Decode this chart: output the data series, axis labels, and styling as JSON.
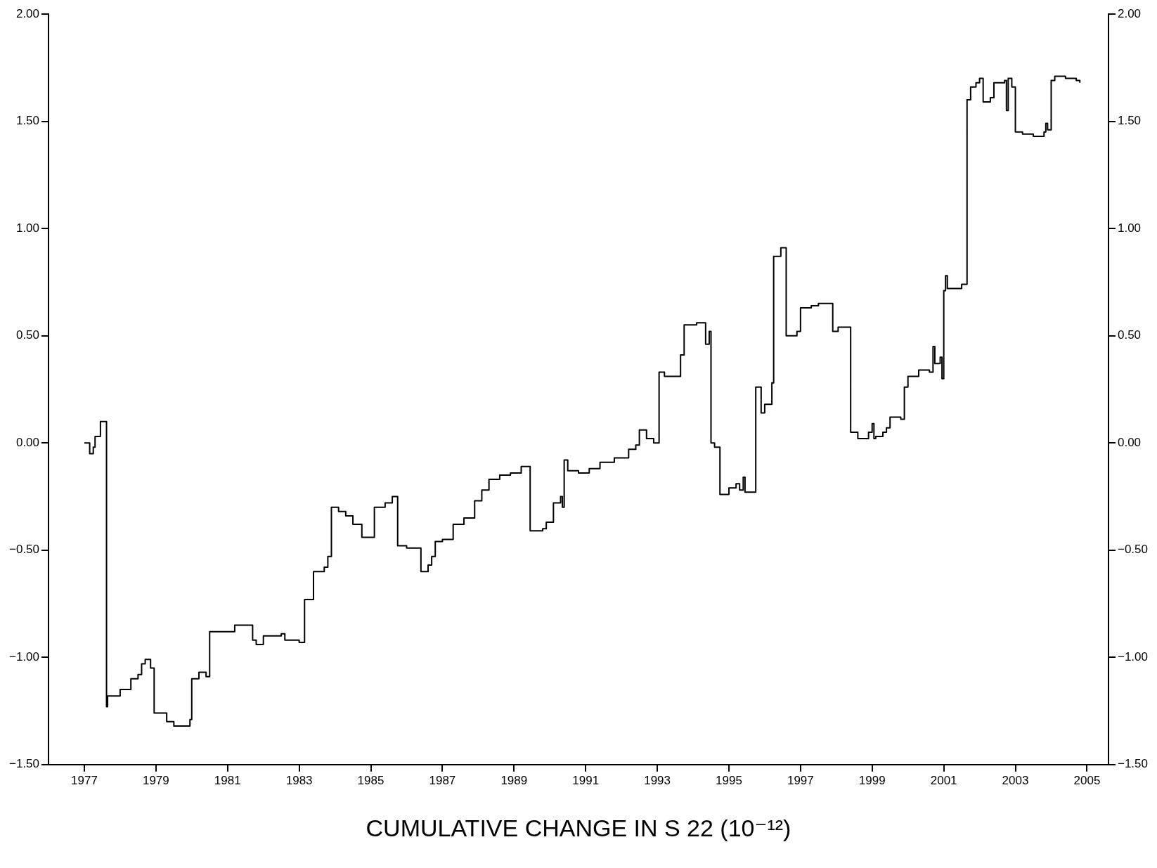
{
  "chart_data": {
    "type": "step",
    "xlabel": "CUMULATIVE CHANGE IN S 22 (10⁻¹²)",
    "xlim": [
      1976,
      2005.6
    ],
    "xticks": [
      1977,
      1979,
      1981,
      1983,
      1985,
      1987,
      1989,
      1991,
      1993,
      1995,
      1997,
      1999,
      2001,
      2003,
      2005
    ],
    "ylim": [
      -1.5,
      2
    ],
    "yticks": [
      {
        "value": -1.5,
        "label": "−1.50"
      },
      {
        "value": -1,
        "label": "−1.00"
      },
      {
        "value": -0.5,
        "label": "−0.50"
      },
      {
        "value": 0,
        "label": "0.00"
      },
      {
        "value": 0.5,
        "label": "0.50"
      },
      {
        "value": 1,
        "label": "1.00"
      },
      {
        "value": 1.5,
        "label": "1.50"
      },
      {
        "value": 2,
        "label": "2.00"
      }
    ],
    "y2lim": [
      -1.5,
      2
    ],
    "y2ticks": [
      {
        "value": -1.5,
        "label": "−1.50"
      },
      {
        "value": -1,
        "label": "−1.00"
      },
      {
        "value": -0.5,
        "label": "−0.50"
      },
      {
        "value": 0,
        "label": "0.00"
      },
      {
        "value": 0.5,
        "label": "0.50"
      },
      {
        "value": 1,
        "label": "1.00"
      },
      {
        "value": 1.5,
        "label": "1.50"
      },
      {
        "value": 2,
        "label": "2.00"
      }
    ],
    "grid": false,
    "legend": false,
    "marker": "none",
    "line_style": "solid",
    "series": [
      {
        "color": "#000000",
        "x": [
          1977.0,
          1977.15,
          1977.25,
          1977.3,
          1977.45,
          1977.62,
          1977.65,
          1978.0,
          1978.3,
          1978.5,
          1978.6,
          1978.7,
          1978.85,
          1978.95,
          1979.3,
          1979.5,
          1979.95,
          1980.0,
          1980.2,
          1980.4,
          1980.5,
          1981.2,
          1981.7,
          1981.8,
          1982.0,
          1982.5,
          1982.6,
          1983.0,
          1983.15,
          1983.4,
          1983.7,
          1983.8,
          1983.9,
          1984.1,
          1984.3,
          1984.5,
          1984.75,
          1985.1,
          1985.4,
          1985.6,
          1985.75,
          1986.0,
          1986.4,
          1986.6,
          1986.7,
          1986.8,
          1987.0,
          1987.3,
          1987.6,
          1987.9,
          1988.1,
          1988.3,
          1988.6,
          1988.9,
          1989.2,
          1989.45,
          1989.8,
          1989.9,
          1990.1,
          1990.3,
          1990.35,
          1990.4,
          1990.5,
          1990.8,
          1991.1,
          1991.4,
          1991.8,
          1992.2,
          1992.4,
          1992.5,
          1992.7,
          1992.9,
          1993.05,
          1993.2,
          1993.65,
          1993.75,
          1994.1,
          1994.35,
          1994.45,
          1994.5,
          1994.6,
          1994.75,
          1995.0,
          1995.2,
          1995.3,
          1995.4,
          1995.45,
          1995.75,
          1995.9,
          1996.0,
          1996.2,
          1996.25,
          1996.45,
          1996.6,
          1996.9,
          1997.0,
          1997.3,
          1997.5,
          1997.9,
          1998.05,
          1998.4,
          1998.6,
          1998.9,
          1999.0,
          1999.05,
          1999.1,
          1999.3,
          1999.4,
          1999.5,
          1999.8,
          1999.9,
          2000.0,
          2000.3,
          2000.6,
          2000.7,
          2000.75,
          2000.9,
          2000.95,
          2001.0,
          2001.05,
          2001.1,
          2001.5,
          2001.65,
          2001.75,
          2001.9,
          2002.0,
          2002.1,
          2002.3,
          2002.4,
          2002.7,
          2002.75,
          2002.8,
          2002.9,
          2003.0,
          2003.2,
          2003.5,
          2003.8,
          2003.85,
          2003.9,
          2004.0,
          2004.1,
          2004.4,
          2004.7,
          2004.8
        ],
        "values": [
          0.0,
          -0.05,
          -0.02,
          0.03,
          0.1,
          -1.23,
          -1.18,
          -1.15,
          -1.1,
          -1.08,
          -1.03,
          -1.01,
          -1.05,
          -1.26,
          -1.3,
          -1.32,
          -1.29,
          -1.1,
          -1.07,
          -1.09,
          -0.88,
          -0.85,
          -0.92,
          -0.94,
          -0.9,
          -0.89,
          -0.92,
          -0.93,
          -0.73,
          -0.6,
          -0.58,
          -0.53,
          -0.3,
          -0.32,
          -0.34,
          -0.38,
          -0.44,
          -0.3,
          -0.28,
          -0.25,
          -0.48,
          -0.49,
          -0.6,
          -0.57,
          -0.53,
          -0.46,
          -0.45,
          -0.38,
          -0.35,
          -0.27,
          -0.22,
          -0.17,
          -0.15,
          -0.14,
          -0.11,
          -0.41,
          -0.4,
          -0.37,
          -0.28,
          -0.25,
          -0.3,
          -0.08,
          -0.13,
          -0.14,
          -0.12,
          -0.09,
          -0.07,
          -0.03,
          -0.01,
          0.06,
          0.02,
          0.0,
          0.33,
          0.31,
          0.41,
          0.55,
          0.56,
          0.46,
          0.52,
          0.0,
          -0.02,
          -0.24,
          -0.21,
          -0.19,
          -0.22,
          -0.16,
          -0.23,
          0.26,
          0.14,
          0.18,
          0.28,
          0.87,
          0.91,
          0.5,
          0.52,
          0.63,
          0.64,
          0.65,
          0.52,
          0.54,
          0.05,
          0.02,
          0.05,
          0.09,
          0.02,
          0.03,
          0.05,
          0.07,
          0.12,
          0.11,
          0.26,
          0.31,
          0.34,
          0.33,
          0.45,
          0.37,
          0.4,
          0.3,
          0.71,
          0.78,
          0.72,
          0.74,
          1.6,
          1.66,
          1.68,
          1.7,
          1.59,
          1.61,
          1.68,
          1.69,
          1.55,
          1.7,
          1.66,
          1.45,
          1.44,
          1.43,
          1.45,
          1.49,
          1.46,
          1.69,
          1.71,
          1.7,
          1.69,
          1.68
        ]
      }
    ]
  }
}
